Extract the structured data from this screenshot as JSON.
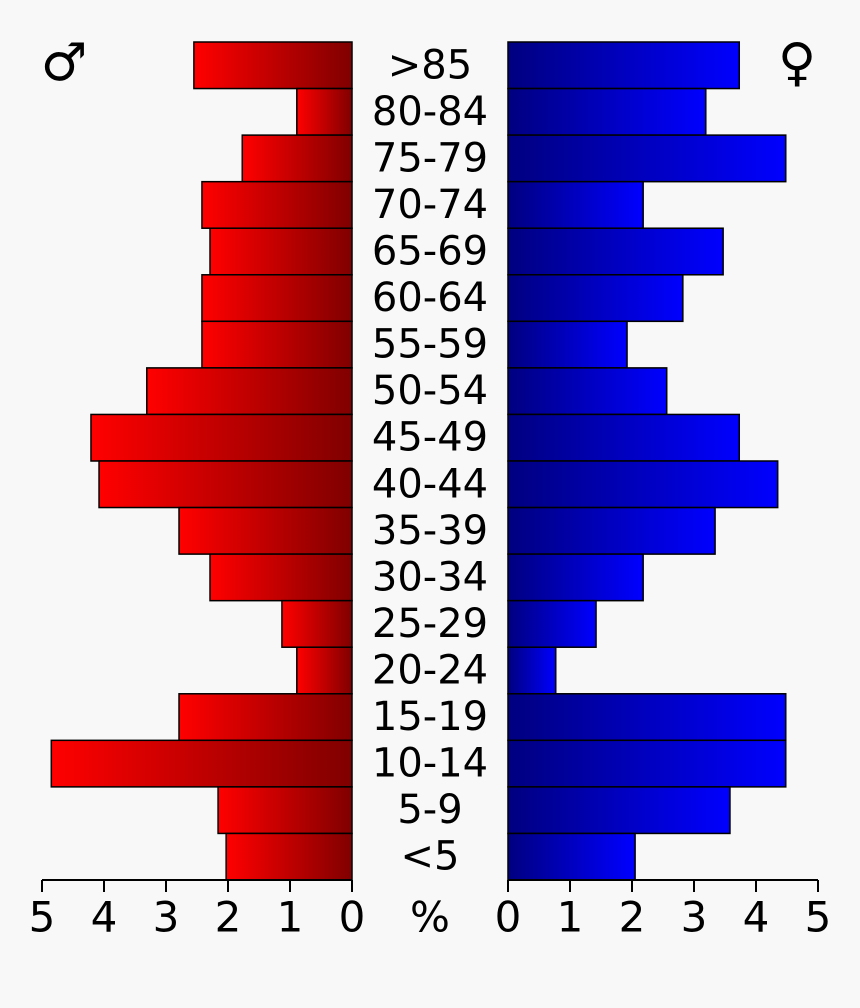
{
  "chart_data": {
    "type": "pyramid",
    "categories": [
      ">85",
      "80-84",
      "75-79",
      "70-74",
      "65-69",
      "60-64",
      "55-59",
      "50-54",
      "45-49",
      "40-44",
      "35-39",
      "30-34",
      "25-29",
      "20-24",
      "15-19",
      "10-14",
      "5-9",
      "<5"
    ],
    "series": [
      {
        "name": "♂",
        "colors": [
          "#ff0000",
          "#800000"
        ],
        "values": [
          2.55,
          0.89,
          1.77,
          2.42,
          2.29,
          2.42,
          2.42,
          3.31,
          4.21,
          4.08,
          2.79,
          2.29,
          1.13,
          0.89,
          2.79,
          4.85,
          2.16,
          2.03
        ]
      },
      {
        "name": "♀",
        "colors": [
          "#000080",
          "#0000ff"
        ],
        "values": [
          3.73,
          3.19,
          4.48,
          2.18,
          3.47,
          2.82,
          1.92,
          2.56,
          3.73,
          4.35,
          3.34,
          2.18,
          1.42,
          0.77,
          4.48,
          4.48,
          3.58,
          2.05
        ]
      }
    ],
    "unit_label": "%",
    "xlim": [
      0,
      5
    ],
    "xticks": [
      0,
      1,
      2,
      3,
      4,
      5
    ]
  }
}
